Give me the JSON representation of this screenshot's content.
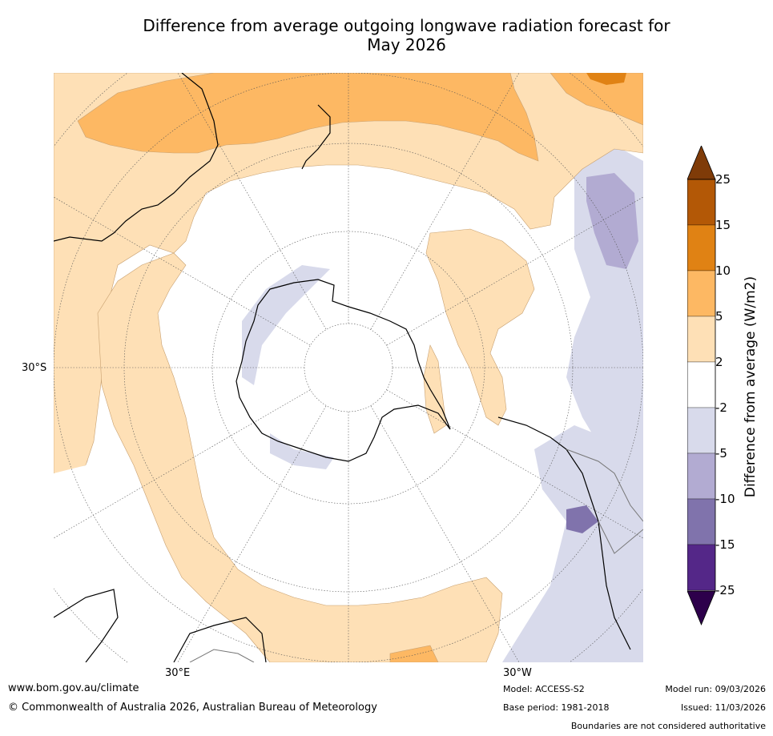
{
  "title": {
    "line1": "Difference from average outgoing longwave radiation forecast for",
    "line2": "May 2026"
  },
  "map": {
    "projection": "south-polar-stereographic",
    "lat_label": "30°S",
    "lon_labels": {
      "east": "30°E",
      "west": "30°W"
    }
  },
  "colorbar": {
    "title": "Difference from average (W/m2)",
    "ticks": [
      "25",
      "15",
      "10",
      "5",
      "2",
      "-2",
      "-5",
      "-10",
      "-15",
      "-25"
    ],
    "colors": {
      "above_25": "#7f3b08",
      "15_25": "#b35806",
      "10_15": "#e08214",
      "5_10": "#fdb863",
      "2_5": "#fee0b6",
      "neutral": "#ffffff",
      "m5_m2": "#d8daeb",
      "m10_m5": "#b2abd2",
      "m15_m10": "#8073ac",
      "m25_m15": "#542788",
      "below_m25": "#2d004b"
    }
  },
  "footer": {
    "website": "www.bom.gov.au/climate",
    "copyright": "© Commonwealth of Australia 2026, Australian Bureau of Meteorology",
    "model": "Model: ACCESS-S2",
    "base_period": "Base period: 1981-2018",
    "model_run": "Model run: 09/03/2026",
    "issued": "Issued: 11/03/2026",
    "disclaimer": "Boundaries are not considered authoritative"
  }
}
